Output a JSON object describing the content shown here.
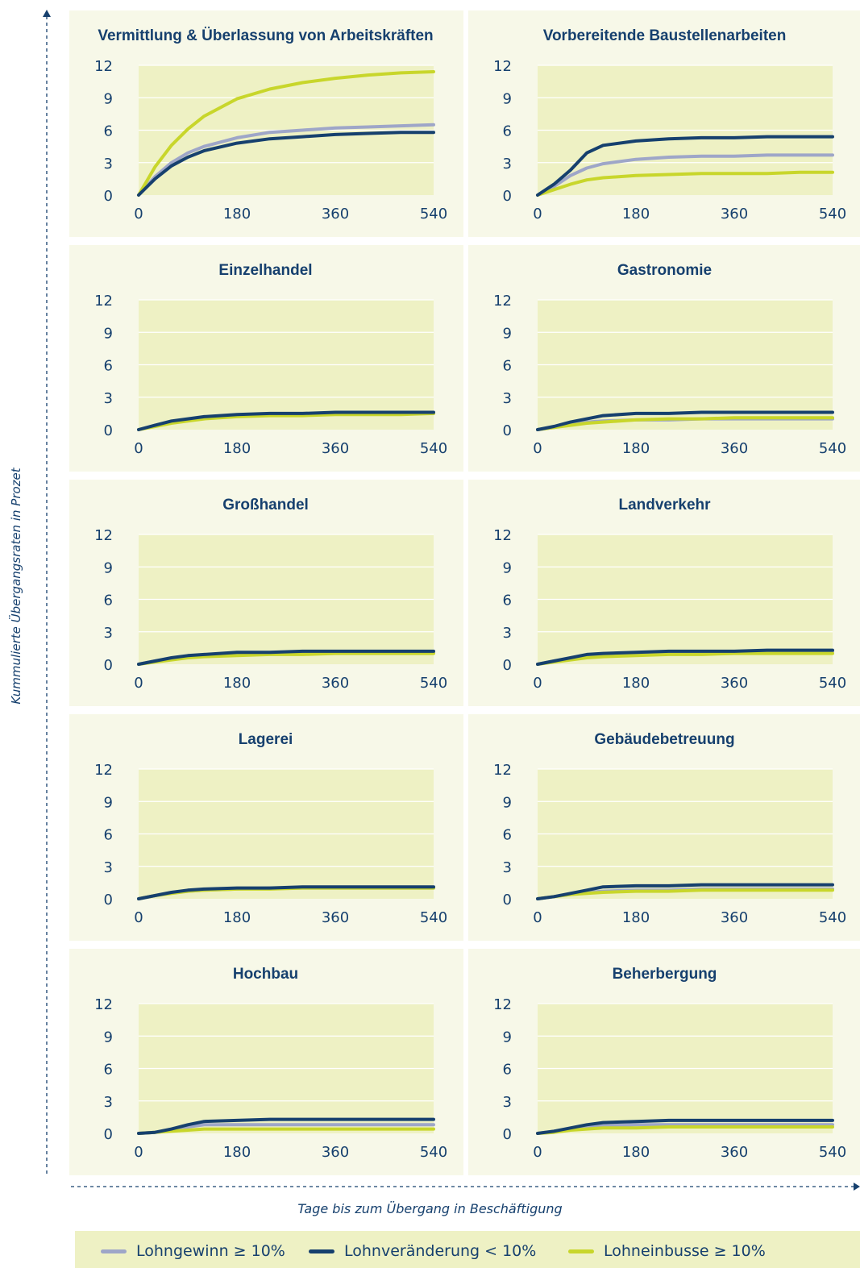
{
  "y_caption": "Kummulierte Übergangsraten in Prozet",
  "x_caption": "Tage bis zum Übergang in Beschäftigung",
  "legend": [
    {
      "label": "Lohngewinn ≥ 10%",
      "color": "#9ea6c8"
    },
    {
      "label": "Lohnveränderung < 10%",
      "color": "#16406e"
    },
    {
      "label": "Lohneinbusse ≥ 10%",
      "color": "#c8d62b"
    }
  ],
  "chart_data": [
    {
      "type": "line",
      "title": "Vermittlung & Überlassung von Arbeitskräften",
      "xticks": [
        "0",
        "180",
        "360",
        "540"
      ],
      "yticks": [
        "0",
        "3",
        "6",
        "9",
        "12"
      ],
      "xlim": [
        0,
        540
      ],
      "ylim": [
        0,
        12
      ],
      "x": [
        0,
        30,
        60,
        90,
        120,
        180,
        240,
        300,
        360,
        420,
        480,
        540
      ],
      "series": [
        {
          "name": "Lohngewinn ≥ 10%",
          "values": [
            0,
            1.7,
            3.0,
            3.9,
            4.5,
            5.3,
            5.8,
            6.0,
            6.2,
            6.3,
            6.4,
            6.5
          ]
        },
        {
          "name": "Lohnveränderung < 10%",
          "values": [
            0,
            1.5,
            2.7,
            3.5,
            4.1,
            4.8,
            5.2,
            5.4,
            5.6,
            5.7,
            5.8,
            5.8
          ]
        },
        {
          "name": "Lohneinbusse ≥ 10%",
          "values": [
            0,
            2.6,
            4.6,
            6.1,
            7.3,
            8.9,
            9.8,
            10.4,
            10.8,
            11.1,
            11.3,
            11.4
          ]
        }
      ]
    },
    {
      "type": "line",
      "title": "Vorbereitende Baustellenarbeiten",
      "xticks": [
        "0",
        "180",
        "360",
        "540"
      ],
      "yticks": [
        "0",
        "3",
        "6",
        "9",
        "12"
      ],
      "xlim": [
        0,
        540
      ],
      "ylim": [
        0,
        12
      ],
      "x": [
        0,
        30,
        60,
        90,
        120,
        180,
        240,
        300,
        360,
        420,
        480,
        540
      ],
      "series": [
        {
          "name": "Lohngewinn ≥ 10%",
          "values": [
            0,
            0.8,
            1.8,
            2.5,
            2.9,
            3.3,
            3.5,
            3.6,
            3.6,
            3.7,
            3.7,
            3.7
          ]
        },
        {
          "name": "Lohnveränderung < 10%",
          "values": [
            0,
            1.0,
            2.3,
            3.9,
            4.6,
            5.0,
            5.2,
            5.3,
            5.3,
            5.4,
            5.4,
            5.4
          ]
        },
        {
          "name": "Lohneinbusse ≥ 10%",
          "values": [
            0,
            0.5,
            1.0,
            1.4,
            1.6,
            1.8,
            1.9,
            2.0,
            2.0,
            2.0,
            2.1,
            2.1
          ]
        }
      ]
    },
    {
      "type": "line",
      "title": "Einzelhandel",
      "xticks": [
        "0",
        "180",
        "360",
        "540"
      ],
      "yticks": [
        "0",
        "3",
        "6",
        "9",
        "12"
      ],
      "xlim": [
        0,
        540
      ],
      "ylim": [
        0,
        12
      ],
      "x": [
        0,
        30,
        60,
        90,
        120,
        180,
        240,
        300,
        360,
        420,
        480,
        540
      ],
      "series": [
        {
          "name": "Lohngewinn ≥ 10%",
          "values": [
            0,
            0.4,
            0.7,
            0.9,
            1.1,
            1.3,
            1.4,
            1.4,
            1.5,
            1.5,
            1.5,
            1.5
          ]
        },
        {
          "name": "Lohnveränderung < 10%",
          "values": [
            0,
            0.4,
            0.8,
            1.0,
            1.2,
            1.4,
            1.5,
            1.5,
            1.6,
            1.6,
            1.6,
            1.6
          ]
        },
        {
          "name": "Lohneinbusse ≥ 10%",
          "values": [
            0,
            0.3,
            0.6,
            0.8,
            1.0,
            1.2,
            1.3,
            1.3,
            1.4,
            1.4,
            1.4,
            1.5
          ]
        }
      ]
    },
    {
      "type": "line",
      "title": "Gastronomie",
      "xticks": [
        "0",
        "180",
        "360",
        "540"
      ],
      "yticks": [
        "0",
        "3",
        "6",
        "9",
        "12"
      ],
      "xlim": [
        0,
        540
      ],
      "ylim": [
        0,
        12
      ],
      "x": [
        0,
        30,
        60,
        90,
        120,
        180,
        240,
        300,
        360,
        420,
        480,
        540
      ],
      "series": [
        {
          "name": "Lohngewinn ≥ 10%",
          "values": [
            0,
            0.2,
            0.5,
            0.7,
            0.8,
            0.9,
            0.9,
            1.0,
            1.0,
            1.0,
            1.0,
            1.0
          ]
        },
        {
          "name": "Lohnveränderung < 10%",
          "values": [
            0,
            0.3,
            0.7,
            1.0,
            1.3,
            1.5,
            1.5,
            1.6,
            1.6,
            1.6,
            1.6,
            1.6
          ]
        },
        {
          "name": "Lohneinbusse ≥ 10%",
          "values": [
            0,
            0.2,
            0.4,
            0.6,
            0.7,
            0.9,
            1.0,
            1.0,
            1.1,
            1.1,
            1.1,
            1.1
          ]
        }
      ]
    },
    {
      "type": "line",
      "title": "Großhandel",
      "xticks": [
        "0",
        "180",
        "360",
        "540"
      ],
      "yticks": [
        "0",
        "3",
        "6",
        "9",
        "12"
      ],
      "xlim": [
        0,
        540
      ],
      "ylim": [
        0,
        12
      ],
      "x": [
        0,
        30,
        60,
        90,
        120,
        180,
        240,
        300,
        360,
        420,
        480,
        540
      ],
      "series": [
        {
          "name": "Lohngewinn ≥ 10%",
          "values": [
            0,
            0.3,
            0.5,
            0.7,
            0.8,
            1.0,
            1.0,
            1.1,
            1.1,
            1.1,
            1.1,
            1.1
          ]
        },
        {
          "name": "Lohnveränderung < 10%",
          "values": [
            0,
            0.3,
            0.6,
            0.8,
            0.9,
            1.1,
            1.1,
            1.2,
            1.2,
            1.2,
            1.2,
            1.2
          ]
        },
        {
          "name": "Lohneinbusse ≥ 10%",
          "values": [
            0,
            0.2,
            0.4,
            0.6,
            0.7,
            0.8,
            0.9,
            0.9,
            1.0,
            1.0,
            1.0,
            1.0
          ]
        }
      ]
    },
    {
      "type": "line",
      "title": "Landverkehr",
      "xticks": [
        "0",
        "180",
        "360",
        "540"
      ],
      "yticks": [
        "0",
        "3",
        "6",
        "9",
        "12"
      ],
      "xlim": [
        0,
        540
      ],
      "ylim": [
        0,
        12
      ],
      "x": [
        0,
        30,
        60,
        90,
        120,
        180,
        240,
        300,
        360,
        420,
        480,
        540
      ],
      "series": [
        {
          "name": "Lohngewinn ≥ 10%",
          "values": [
            0,
            0.3,
            0.5,
            0.7,
            0.8,
            1.0,
            1.0,
            1.1,
            1.1,
            1.1,
            1.1,
            1.2
          ]
        },
        {
          "name": "Lohnveränderung < 10%",
          "values": [
            0,
            0.3,
            0.6,
            0.9,
            1.0,
            1.1,
            1.2,
            1.2,
            1.2,
            1.3,
            1.3,
            1.3
          ]
        },
        {
          "name": "Lohneinbusse ≥ 10%",
          "values": [
            0,
            0.2,
            0.4,
            0.6,
            0.7,
            0.8,
            0.9,
            0.9,
            1.0,
            1.0,
            1.0,
            1.0
          ]
        }
      ]
    },
    {
      "type": "line",
      "title": "Lagerei",
      "xticks": [
        "0",
        "180",
        "360",
        "540"
      ],
      "yticks": [
        "0",
        "3",
        "6",
        "9",
        "12"
      ],
      "xlim": [
        0,
        540
      ],
      "ylim": [
        0,
        12
      ],
      "x": [
        0,
        30,
        60,
        90,
        120,
        180,
        240,
        300,
        360,
        420,
        480,
        540
      ],
      "series": [
        {
          "name": "Lohngewinn ≥ 10%",
          "values": [
            0,
            0.3,
            0.6,
            0.7,
            0.8,
            0.9,
            1.0,
            1.0,
            1.0,
            1.0,
            1.0,
            1.0
          ]
        },
        {
          "name": "Lohnveränderung < 10%",
          "values": [
            0,
            0.3,
            0.6,
            0.8,
            0.9,
            1.0,
            1.0,
            1.1,
            1.1,
            1.1,
            1.1,
            1.1
          ]
        },
        {
          "name": "Lohneinbusse ≥ 10%",
          "values": [
            0,
            0.3,
            0.5,
            0.7,
            0.8,
            0.9,
            0.9,
            1.0,
            1.0,
            1.0,
            1.0,
            1.0
          ]
        }
      ]
    },
    {
      "type": "line",
      "title": "Gebäudebetreuung",
      "xticks": [
        "0",
        "180",
        "360",
        "540"
      ],
      "yticks": [
        "0",
        "3",
        "6",
        "9",
        "12"
      ],
      "xlim": [
        0,
        540
      ],
      "ylim": [
        0,
        12
      ],
      "x": [
        0,
        30,
        60,
        90,
        120,
        180,
        240,
        300,
        360,
        420,
        480,
        540
      ],
      "series": [
        {
          "name": "Lohngewinn ≥ 10%",
          "values": [
            0,
            0.2,
            0.4,
            0.6,
            0.7,
            0.8,
            0.8,
            0.9,
            0.9,
            0.9,
            0.9,
            0.9
          ]
        },
        {
          "name": "Lohnveränderung < 10%",
          "values": [
            0,
            0.2,
            0.5,
            0.8,
            1.1,
            1.2,
            1.2,
            1.3,
            1.3,
            1.3,
            1.3,
            1.3
          ]
        },
        {
          "name": "Lohneinbusse ≥ 10%",
          "values": [
            0,
            0.2,
            0.4,
            0.5,
            0.6,
            0.7,
            0.7,
            0.8,
            0.8,
            0.8,
            0.8,
            0.8
          ]
        }
      ]
    },
    {
      "type": "line",
      "title": "Hochbau",
      "xticks": [
        "0",
        "180",
        "360",
        "540"
      ],
      "yticks": [
        "0",
        "3",
        "6",
        "9",
        "12"
      ],
      "xlim": [
        0,
        540
      ],
      "ylim": [
        0,
        12
      ],
      "x": [
        0,
        30,
        60,
        90,
        120,
        180,
        240,
        300,
        360,
        420,
        480,
        540
      ],
      "series": [
        {
          "name": "Lohngewinn ≥ 10%",
          "values": [
            0,
            0.1,
            0.3,
            0.6,
            0.8,
            0.8,
            0.8,
            0.8,
            0.8,
            0.8,
            0.8,
            0.8
          ]
        },
        {
          "name": "Lohnveränderung < 10%",
          "values": [
            0,
            0.1,
            0.4,
            0.8,
            1.1,
            1.2,
            1.3,
            1.3,
            1.3,
            1.3,
            1.3,
            1.3
          ]
        },
        {
          "name": "Lohneinbusse ≥ 10%",
          "values": [
            0,
            0.1,
            0.2,
            0.3,
            0.4,
            0.4,
            0.4,
            0.4,
            0.4,
            0.4,
            0.4,
            0.4
          ]
        }
      ]
    },
    {
      "type": "line",
      "title": "Beherbergung",
      "xticks": [
        "0",
        "180",
        "360",
        "540"
      ],
      "yticks": [
        "0",
        "3",
        "6",
        "9",
        "12"
      ],
      "xlim": [
        0,
        540
      ],
      "ylim": [
        0,
        12
      ],
      "x": [
        0,
        30,
        60,
        90,
        120,
        180,
        240,
        300,
        360,
        420,
        480,
        540
      ],
      "series": [
        {
          "name": "Lohngewinn ≥ 10%",
          "values": [
            0,
            0.2,
            0.4,
            0.6,
            0.7,
            0.8,
            0.8,
            0.8,
            0.8,
            0.8,
            0.8,
            0.8
          ]
        },
        {
          "name": "Lohnveränderung < 10%",
          "values": [
            0,
            0.2,
            0.5,
            0.8,
            1.0,
            1.1,
            1.2,
            1.2,
            1.2,
            1.2,
            1.2,
            1.2
          ]
        },
        {
          "name": "Lohneinbusse ≥ 10%",
          "values": [
            0,
            0.1,
            0.3,
            0.4,
            0.5,
            0.5,
            0.6,
            0.6,
            0.6,
            0.6,
            0.6,
            0.6
          ]
        }
      ]
    }
  ]
}
